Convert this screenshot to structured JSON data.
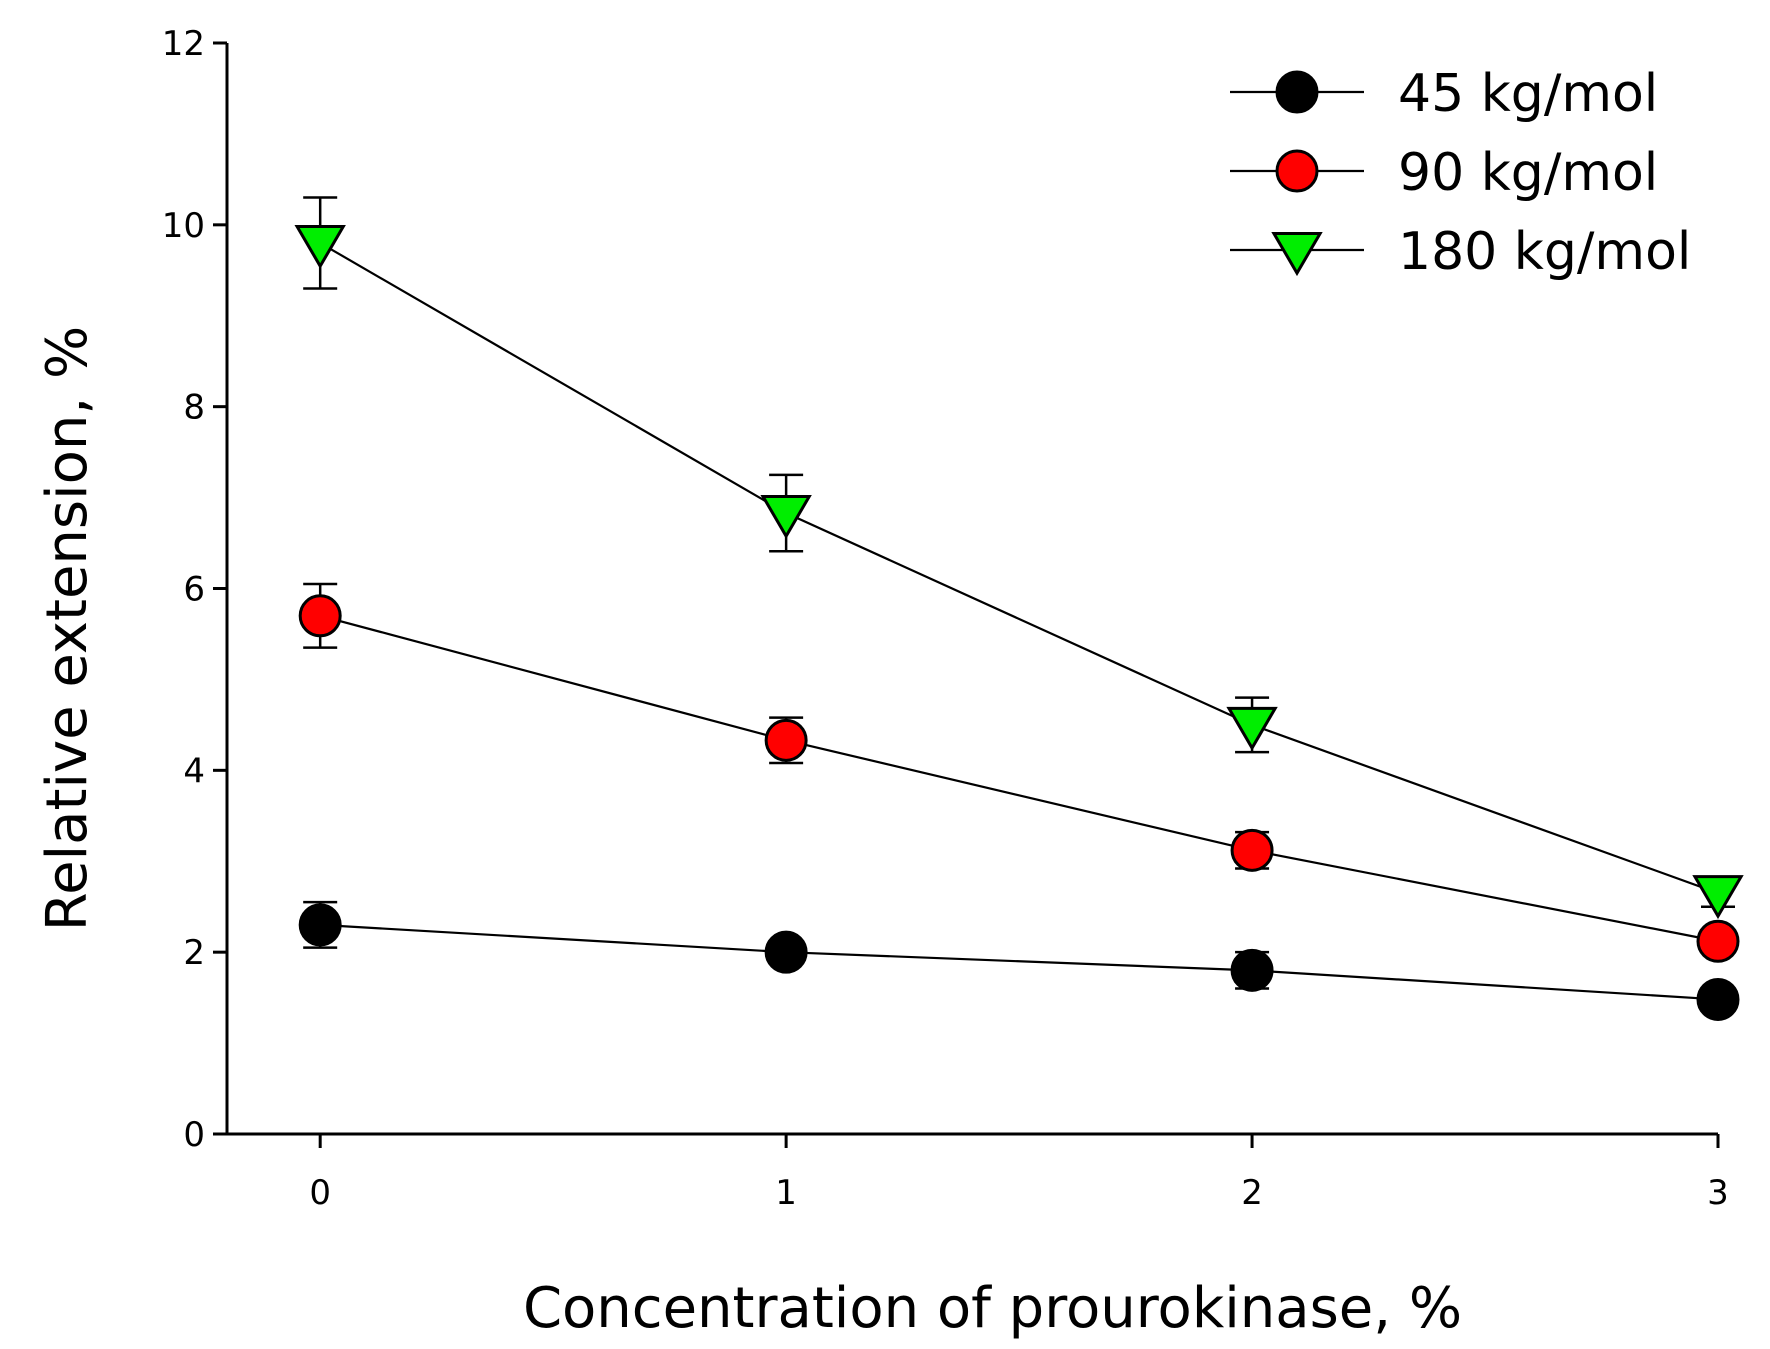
{
  "chart_data": {
    "type": "line",
    "title": "",
    "xlabel": "Concentration of prourokinase, %",
    "ylabel": "Relative extension, %",
    "x": [
      0,
      1,
      2,
      3
    ],
    "x_ticks": [
      "0",
      "1",
      "2",
      "3"
    ],
    "xlim": [
      -0.2,
      3.0
    ],
    "ylim": [
      0,
      12
    ],
    "y_ticks": [
      "0",
      "2",
      "4",
      "6",
      "8",
      "10",
      "12"
    ],
    "grid": false,
    "legend_position": "top-right",
    "series": [
      {
        "name": "45 kg/mol",
        "marker": "circle",
        "color": "#000000",
        "values": [
          2.3,
          2.0,
          1.8,
          1.48
        ],
        "error": [
          0.25,
          0.12,
          0.2,
          0.08
        ]
      },
      {
        "name": "90 kg/mol",
        "marker": "circle",
        "color": "#ff0000",
        "values": [
          5.7,
          4.33,
          3.12,
          2.12
        ],
        "error": [
          0.35,
          0.25,
          0.2,
          0.1
        ]
      },
      {
        "name": "180 kg/mol",
        "marker": "triangle-down",
        "color": "#00ee00",
        "values": [
          9.8,
          6.83,
          4.5,
          2.65
        ],
        "error": [
          0.5,
          0.42,
          0.3,
          0.15
        ]
      }
    ]
  }
}
